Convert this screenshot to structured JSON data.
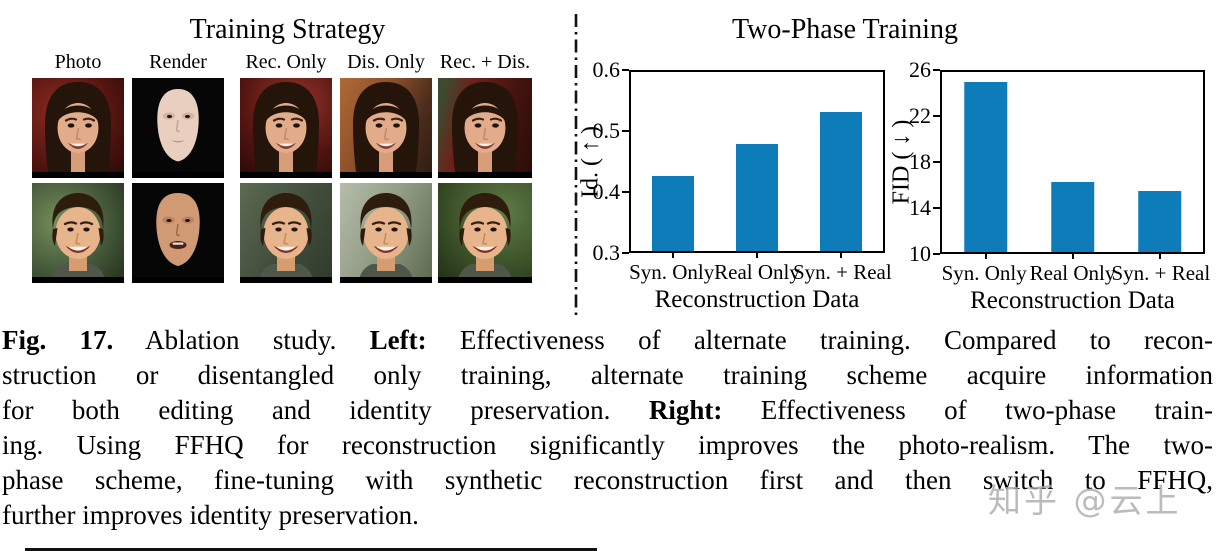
{
  "figure": {
    "left_panel": {
      "title": "Training Strategy",
      "column_labels": [
        "Photo",
        "Render",
        "Rec. Only",
        "Dis. Only",
        "Rec. + Dis."
      ],
      "row_subjects": [
        "woman-face",
        "man-face"
      ]
    },
    "right_panel": {
      "title": "Two-Phase Training"
    }
  },
  "chart_data": [
    {
      "type": "bar",
      "title": "",
      "categories": [
        "Syn. Only",
        "Real Only",
        "Syn. + Real"
      ],
      "values": [
        0.425,
        0.48,
        0.533
      ],
      "xlabel": "Reconstruction Data",
      "ylabel": "Id. ( ↑ )",
      "ylim": [
        0.3,
        0.6
      ],
      "yticks": [
        "0.3",
        "0.4",
        "0.5",
        "0.6"
      ],
      "grid": false,
      "legend": "none",
      "bar_color": "#0f7cba"
    },
    {
      "type": "bar",
      "title": "",
      "categories": [
        "Syn. Only",
        "Real Only",
        "Syn. + Real"
      ],
      "values": [
        25.1,
        16.2,
        15.4
      ],
      "xlabel": "Reconstruction Data",
      "ylabel": "FID ( ↓ )",
      "ylim": [
        10,
        26
      ],
      "yticks": [
        "10",
        "14",
        "18",
        "22",
        "26"
      ],
      "grid": false,
      "legend": "none",
      "bar_color": "#0f7cba"
    }
  ],
  "caption": {
    "lines": [
      [
        {
          "b": true,
          "t": "Fig. 17."
        },
        {
          "b": false,
          "t": " Ablation study. "
        },
        {
          "b": true,
          "t": "Left:"
        },
        {
          "b": false,
          "t": " Effectiveness of alternate training. Compared to recon-"
        }
      ],
      [
        {
          "b": false,
          "t": "struction or disentangled only training, alternate training scheme acquire information"
        }
      ],
      [
        {
          "b": false,
          "t": "for both editing and identity preservation. "
        },
        {
          "b": true,
          "t": "Right:"
        },
        {
          "b": false,
          "t": " Effectiveness of two-phase train-"
        }
      ],
      [
        {
          "b": false,
          "t": "ing. Using FFHQ for reconstruction significantly improves the photo-realism. The two-"
        }
      ],
      [
        {
          "b": false,
          "t": "phase scheme, fine-tuning with synthetic reconstruction first and then switch to FFHQ,"
        }
      ],
      [
        {
          "b": false,
          "t": "further improves identity preservation."
        }
      ]
    ]
  },
  "watermark": "知乎 @云上"
}
